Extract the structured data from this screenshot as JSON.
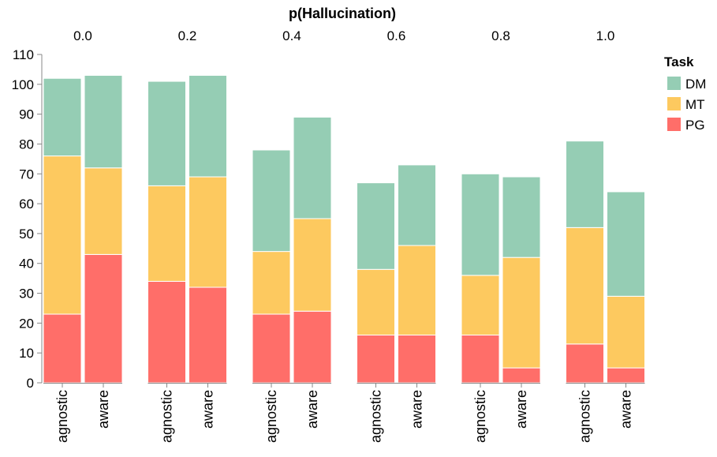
{
  "chart_data": {
    "type": "bar",
    "stacked": true,
    "facet_title": "p(Hallucination)",
    "facets": [
      "0.0",
      "0.2",
      "0.4",
      "0.6",
      "0.8",
      "1.0"
    ],
    "categories": [
      "agnostic",
      "aware"
    ],
    "y_ticks": [
      "0",
      "10",
      "20",
      "30",
      "40",
      "50",
      "60",
      "70",
      "80",
      "90",
      "100",
      "110"
    ],
    "ylim": [
      0,
      110
    ],
    "legend": {
      "title": "Task",
      "position": "top-right",
      "items": [
        {
          "name": "DM",
          "color": "#95cdb4"
        },
        {
          "name": "MT",
          "color": "#fdc95f"
        },
        {
          "name": "PG",
          "color": "#ff6e69"
        }
      ]
    },
    "series": [
      {
        "name": "PG",
        "color": "#ff6e69",
        "values": [
          [
            23,
            43
          ],
          [
            34,
            32
          ],
          [
            23,
            24
          ],
          [
            16,
            16
          ],
          [
            16,
            5
          ],
          [
            13,
            5
          ]
        ]
      },
      {
        "name": "MT",
        "color": "#fdc95f",
        "values": [
          [
            53,
            29
          ],
          [
            32,
            37
          ],
          [
            21,
            31
          ],
          [
            22,
            30
          ],
          [
            20,
            37
          ],
          [
            39,
            24
          ]
        ]
      },
      {
        "name": "DM",
        "color": "#95cdb4",
        "values": [
          [
            26,
            31
          ],
          [
            35,
            34
          ],
          [
            34,
            34
          ],
          [
            29,
            27
          ],
          [
            34,
            27
          ],
          [
            29,
            35
          ]
        ]
      }
    ]
  }
}
